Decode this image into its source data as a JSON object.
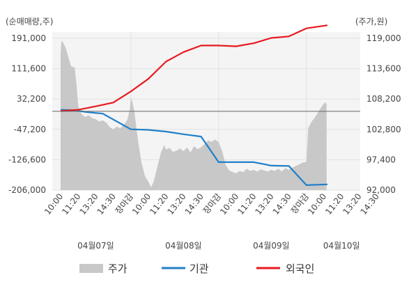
{
  "chart_data": {
    "type": "line",
    "left_axis": {
      "unit_label": "(순매매량,주)",
      "ticks": [
        "191,000",
        "111,600",
        "32,200",
        "-47,200",
        "-126,600",
        "-206,000"
      ],
      "values": [
        191000,
        111600,
        32200,
        -47200,
        -126600,
        -206000
      ],
      "range": [
        -206000,
        191000
      ]
    },
    "right_axis": {
      "unit_label": "(주가,원)",
      "ticks": [
        "119,000",
        "113,600",
        "108,200",
        "102,800",
        "97,400",
        "92,000"
      ],
      "values": [
        119000,
        113600,
        108200,
        102800,
        97400,
        92000
      ],
      "range": [
        92000,
        119000
      ]
    },
    "x_ticks": [
      {
        "label": "10:00",
        "t": 0,
        "color": "#333333"
      },
      {
        "label": "11:20",
        "t": 1,
        "color": "#333333"
      },
      {
        "label": "13:20",
        "t": 2,
        "color": "#333333"
      },
      {
        "label": "14:30",
        "t": 3,
        "color": "#333333"
      },
      {
        "label": "장마감",
        "t": 4,
        "color": "#e8191f"
      },
      {
        "label": "10:00",
        "t": 5,
        "color": "#333333"
      },
      {
        "label": "11:20",
        "t": 6,
        "color": "#333333"
      },
      {
        "label": "13:20",
        "t": 7,
        "color": "#333333"
      },
      {
        "label": "14:30",
        "t": 8,
        "color": "#333333"
      },
      {
        "label": "장마감",
        "t": 9,
        "color": "#e8191f"
      },
      {
        "label": "10:00",
        "t": 10,
        "color": "#333333"
      },
      {
        "label": "11:20",
        "t": 11,
        "color": "#333333"
      },
      {
        "label": "13:20",
        "t": 12,
        "color": "#333333"
      },
      {
        "label": "14:30",
        "t": 13,
        "color": "#333333"
      },
      {
        "label": "장마감",
        "t": 14,
        "color": "#e8191f"
      },
      {
        "label": "10:00",
        "t": 15,
        "color": "#333333"
      },
      {
        "label": "11:20",
        "t": 16,
        "color": "#333333"
      },
      {
        "label": "13:20",
        "t": 17,
        "color": "#333333"
      },
      {
        "label": "14:30",
        "t": 18,
        "color": "#333333"
      }
    ],
    "dates": [
      {
        "label": "04월07일",
        "t": 2
      },
      {
        "label": "04월08일",
        "t": 7
      },
      {
        "label": "04월09일",
        "t": 12
      },
      {
        "label": "04월10일",
        "t": 16
      }
    ],
    "day_dividers": [
      4,
      9,
      14
    ],
    "series": [
      {
        "name": "주가",
        "axis": "right",
        "style": "area",
        "color": "#c8c8c8",
        "points": [
          [
            0.0,
            116500
          ],
          [
            0.05,
            118600
          ],
          [
            0.15,
            118200
          ],
          [
            0.3,
            117200
          ],
          [
            0.5,
            115000
          ],
          [
            0.6,
            114000
          ],
          [
            0.8,
            113800
          ],
          [
            0.9,
            111000
          ],
          [
            1.0,
            107000
          ],
          [
            1.1,
            106200
          ],
          [
            1.2,
            105500
          ],
          [
            1.4,
            105000
          ],
          [
            1.6,
            105300
          ],
          [
            1.8,
            104800
          ],
          [
            2.0,
            104600
          ],
          [
            2.2,
            104200
          ],
          [
            2.4,
            104400
          ],
          [
            2.6,
            104000
          ],
          [
            2.8,
            103200
          ],
          [
            3.0,
            102800
          ],
          [
            3.2,
            103300
          ],
          [
            3.4,
            103000
          ],
          [
            3.6,
            103600
          ],
          [
            3.8,
            104500
          ],
          [
            3.95,
            106500
          ],
          [
            4.0,
            108500
          ],
          [
            4.1,
            107500
          ],
          [
            4.2,
            106000
          ],
          [
            4.4,
            101000
          ],
          [
            4.6,
            97000
          ],
          [
            4.8,
            94500
          ],
          [
            5.0,
            93500
          ],
          [
            5.15,
            92500
          ],
          [
            5.3,
            93500
          ],
          [
            5.5,
            96000
          ],
          [
            5.7,
            98500
          ],
          [
            5.9,
            100000
          ],
          [
            6.0,
            99200
          ],
          [
            6.2,
            99500
          ],
          [
            6.4,
            98800
          ],
          [
            6.6,
            99000
          ],
          [
            6.8,
            99400
          ],
          [
            7.0,
            98900
          ],
          [
            7.2,
            99600
          ],
          [
            7.4,
            98700
          ],
          [
            7.6,
            99800
          ],
          [
            7.8,
            99300
          ],
          [
            8.0,
            99600
          ],
          [
            8.2,
            100200
          ],
          [
            8.4,
            100800
          ],
          [
            8.6,
            100600
          ],
          [
            8.8,
            101000
          ],
          [
            9.0,
            100500
          ],
          [
            9.2,
            99000
          ],
          [
            9.4,
            96500
          ],
          [
            9.6,
            95500
          ],
          [
            9.8,
            95200
          ],
          [
            10.0,
            95000
          ],
          [
            10.2,
            95400
          ],
          [
            10.4,
            95200
          ],
          [
            10.6,
            95800
          ],
          [
            10.8,
            95400
          ],
          [
            11.0,
            95600
          ],
          [
            11.2,
            95300
          ],
          [
            11.4,
            95700
          ],
          [
            11.6,
            95500
          ],
          [
            11.8,
            95300
          ],
          [
            12.0,
            95600
          ],
          [
            12.2,
            95400
          ],
          [
            12.4,
            95800
          ],
          [
            12.6,
            95300
          ],
          [
            12.8,
            95900
          ],
          [
            13.0,
            95600
          ],
          [
            13.2,
            96000
          ],
          [
            13.4,
            96300
          ],
          [
            13.6,
            96600
          ],
          [
            13.8,
            96900
          ],
          [
            14.0,
            97000
          ],
          [
            14.1,
            103000
          ],
          [
            14.3,
            104200
          ],
          [
            14.5,
            105000
          ],
          [
            14.7,
            106000
          ],
          [
            14.9,
            107000
          ],
          [
            15.05,
            107600
          ],
          [
            15.15,
            107300
          ]
        ]
      },
      {
        "name": "기관",
        "axis": "left",
        "style": "line",
        "color": "#1f7fc8",
        "points": [
          [
            0.0,
            4000
          ],
          [
            0.7,
            3000
          ],
          [
            1.5,
            -2000
          ],
          [
            2.4,
            -6000
          ],
          [
            4.0,
            -47000
          ],
          [
            5.0,
            -48500
          ],
          [
            6.0,
            -53000
          ],
          [
            7.0,
            -60000
          ],
          [
            8.0,
            -66000
          ],
          [
            9.0,
            -133000
          ],
          [
            10.0,
            -133000
          ],
          [
            11.0,
            -133000
          ],
          [
            12.0,
            -142000
          ],
          [
            13.0,
            -143000
          ],
          [
            14.0,
            -193000
          ],
          [
            15.2,
            -191000
          ]
        ]
      },
      {
        "name": "외국인",
        "axis": "left",
        "style": "line",
        "color": "#e8191f",
        "points": [
          [
            0.0,
            1000
          ],
          [
            1.0,
            4000
          ],
          [
            2.0,
            13000
          ],
          [
            3.0,
            23000
          ],
          [
            4.0,
            52000
          ],
          [
            5.0,
            85000
          ],
          [
            6.0,
            130000
          ],
          [
            7.0,
            155000
          ],
          [
            8.0,
            172000
          ],
          [
            9.0,
            172000
          ],
          [
            10.0,
            170000
          ],
          [
            11.0,
            178000
          ],
          [
            12.0,
            192000
          ],
          [
            13.0,
            196000
          ],
          [
            14.0,
            217000
          ],
          [
            15.2,
            225000
          ]
        ]
      }
    ]
  }
}
